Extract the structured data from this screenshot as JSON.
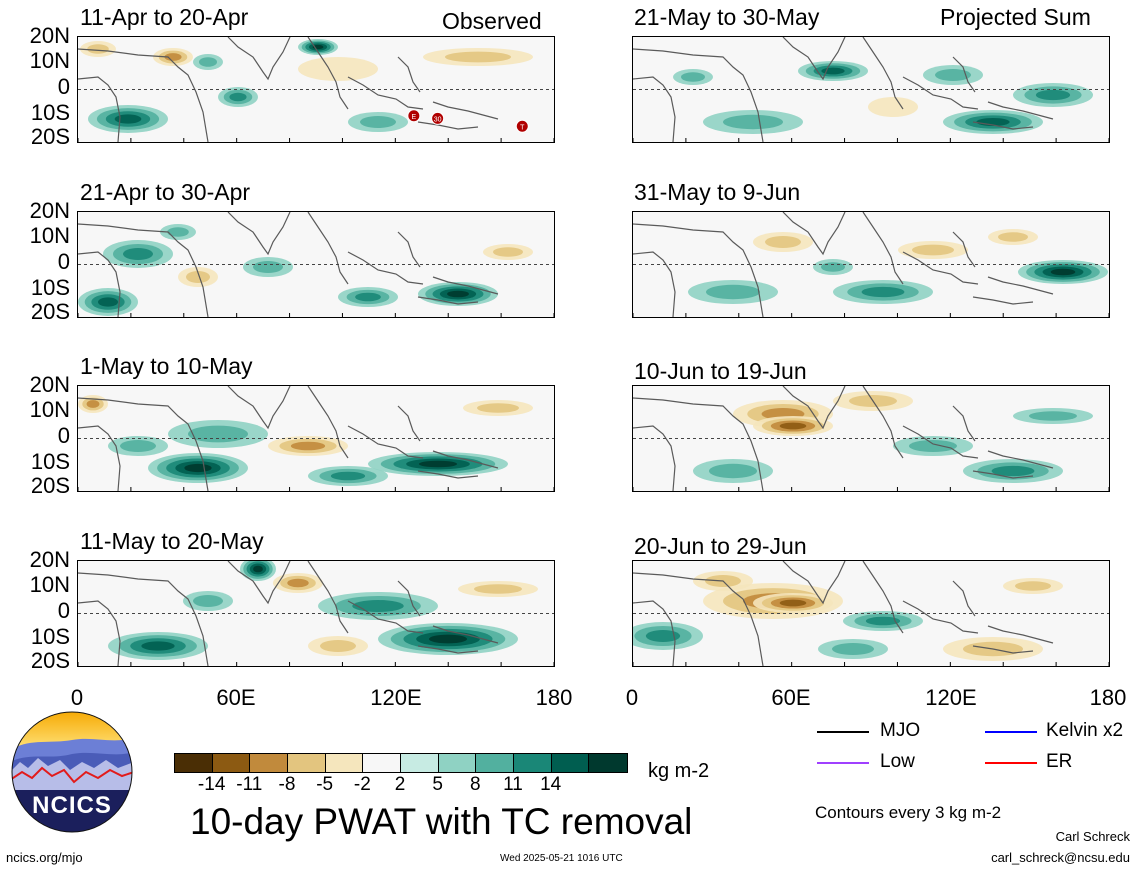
{
  "header": {
    "left_label": "Observed",
    "right_label": "Projected Sum"
  },
  "panels": [
    {
      "id": "p1",
      "title": "11-Apr to 20-Apr",
      "column": "observed",
      "markers": [
        {
          "label": "E",
          "lon": 127,
          "lat": -10
        },
        {
          "label": "30",
          "lon": 136,
          "lat": -11
        },
        {
          "label": "T",
          "lon": 168,
          "lat": -14
        }
      ]
    },
    {
      "id": "p2",
      "title": "21-Apr to 30-Apr",
      "column": "observed",
      "markers": []
    },
    {
      "id": "p3",
      "title": "1-May to 10-May",
      "column": "observed",
      "markers": []
    },
    {
      "id": "p4",
      "title": "11-May to 20-May",
      "column": "observed",
      "markers": []
    },
    {
      "id": "p5",
      "title": "21-May to 30-May",
      "column": "projected",
      "markers": []
    },
    {
      "id": "p6",
      "title": "31-May to 9-Jun",
      "column": "projected",
      "markers": []
    },
    {
      "id": "p7",
      "title": "10-Jun to 19-Jun",
      "column": "projected",
      "markers": []
    },
    {
      "id": "p8",
      "title": "20-Jun to 29-Jun",
      "column": "projected",
      "markers": []
    }
  ],
  "axes": {
    "lat_labels": [
      "20N",
      "10N",
      "0",
      "10S",
      "20S"
    ],
    "lon_labels": [
      "0",
      "60E",
      "120E",
      "180"
    ]
  },
  "colorbar": {
    "colors": [
      "#4a2e05",
      "#8c5a12",
      "#c18a3c",
      "#e3c57f",
      "#f5e6bd",
      "#f7f7f7",
      "#c7ebe3",
      "#8fd2c3",
      "#52b09f",
      "#1a8777",
      "#005e50",
      "#00392e"
    ],
    "labels": [
      "-14",
      "-11",
      "-8",
      "-5",
      "-2",
      "2",
      "5",
      "8",
      "11",
      "14"
    ],
    "unit": "kg m-2"
  },
  "main_title": "10-day PWAT with TC removal",
  "legend": {
    "items": [
      {
        "label": "MJO",
        "color": "#000000"
      },
      {
        "label": "Kelvin x2",
        "color": "#0000ff"
      },
      {
        "label": "Low",
        "color": "#a040ff"
      },
      {
        "label": "ER",
        "color": "#ff0000"
      }
    ],
    "contour_note": "Contours every 3 kg m-2"
  },
  "logo_text": "NCICS",
  "footer": {
    "url": "ncics.org/mjo",
    "timestamp": "Wed 2025-05-21 1016 UTC",
    "author": "Carl Schreck",
    "email": "carl_schreck@ncsu.edu"
  }
}
